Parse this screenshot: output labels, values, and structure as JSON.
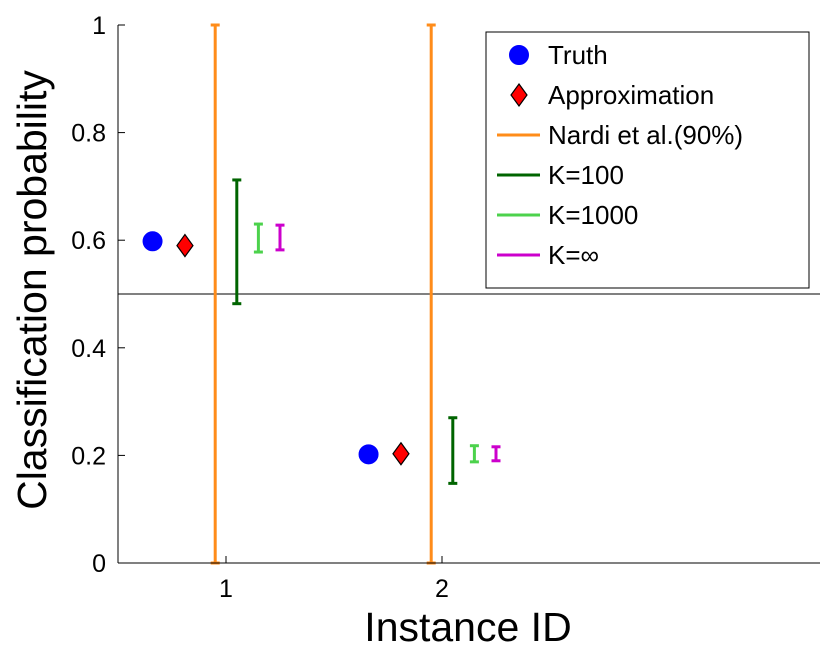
{
  "chart_data": {
    "type": "scatter",
    "xlabel": "Instance ID",
    "ylabel": "Classification probability",
    "x_ticks": [
      "1",
      "2"
    ],
    "y_ticks": [
      "0",
      "0.2",
      "0.4",
      "0.6",
      "0.8",
      "1"
    ],
    "xlim": [
      0.5,
      3.75
    ],
    "ylim": [
      0,
      1
    ],
    "threshold": 0.5,
    "legend_position": "top-right",
    "series": [
      {
        "name": "Truth",
        "kind": "marker",
        "marker": "circle",
        "color": "#0000ff",
        "x": [
          0.66,
          1.66
        ],
        "y": [
          0.598,
          0.202
        ]
      },
      {
        "name": "Approximation",
        "kind": "marker",
        "marker": "diamond",
        "color": "#ff0000",
        "x": [
          0.81,
          1.81
        ],
        "y": [
          0.59,
          0.203
        ]
      },
      {
        "name": "Nardi et al.(90%)",
        "kind": "interval",
        "color": "#ff8c1a",
        "x": [
          0.95,
          1.95
        ],
        "low": [
          0.0,
          0.0
        ],
        "high": [
          1.0,
          1.0
        ]
      },
      {
        "name": "K=100",
        "kind": "interval",
        "color": "#006400",
        "x": [
          1.05,
          2.05
        ],
        "low": [
          0.482,
          0.148
        ],
        "high": [
          0.712,
          0.27
        ]
      },
      {
        "name": "K=1000",
        "kind": "interval",
        "color": "#4cd24c",
        "x": [
          1.15,
          2.15
        ],
        "low": [
          0.578,
          0.188
        ],
        "high": [
          0.63,
          0.218
        ]
      },
      {
        "name": "K=∞",
        "kind": "interval",
        "color": "#cc00cc",
        "x": [
          1.25,
          2.25
        ],
        "low": [
          0.582,
          0.19
        ],
        "high": [
          0.628,
          0.216
        ]
      }
    ]
  }
}
